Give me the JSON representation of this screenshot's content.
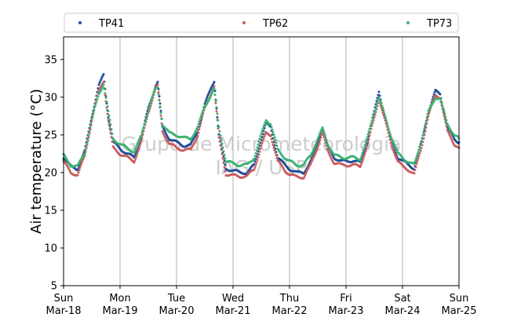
{
  "chart_data": {
    "type": "scatter",
    "title": "",
    "xlabel": "",
    "ylabel": "Air temperature (°C)",
    "ylim": [
      5,
      38
    ],
    "yticks": [
      5,
      10,
      15,
      20,
      25,
      30,
      35
    ],
    "xlim": [
      "2018-03-18 00:00",
      "2018-03-25 00:00"
    ],
    "xticks": [
      {
        "date": "2018-03-18",
        "day": "Sun",
        "label": "Mar-18"
      },
      {
        "date": "2018-03-19",
        "day": "Mon",
        "label": "Mar-19"
      },
      {
        "date": "2018-03-20",
        "day": "Tue",
        "label": "Mar-20"
      },
      {
        "date": "2018-03-21",
        "day": "Wed",
        "label": "Mar-21"
      },
      {
        "date": "2018-03-22",
        "day": "Thu",
        "label": "Mar-22"
      },
      {
        "date": "2018-03-23",
        "day": "Fri",
        "label": "Mar-23"
      },
      {
        "date": "2018-03-24",
        "day": "Sat",
        "label": "Mar-24"
      },
      {
        "date": "2018-03-25",
        "day": "Sun",
        "label": "Mar-25"
      }
    ],
    "grid": "vertical",
    "legend_position": "top",
    "watermark": [
      "Grupo de Micrometeorologia",
      "IAG / USP"
    ],
    "series": [
      {
        "name": "TP41",
        "color": "#1f4e9a",
        "points": [
          [
            "2018-03-18 00:00",
            22.0
          ],
          [
            "2018-03-18 03:00",
            20.8
          ],
          [
            "2018-03-18 06:00",
            20.5
          ],
          [
            "2018-03-18 09:00",
            22.8
          ],
          [
            "2018-03-18 12:00",
            27.5
          ],
          [
            "2018-03-18 15:00",
            31.5
          ],
          [
            "2018-03-18 17:00",
            33.0
          ],
          [
            "2018-03-18 19:00",
            27.5
          ],
          [
            "2018-03-18 21:00",
            24.0
          ],
          [
            "2018-03-19 00:00",
            23.2
          ],
          [
            "2018-03-19 03:00",
            22.5
          ],
          [
            "2018-03-19 06:00",
            22.0
          ],
          [
            "2018-03-19 09:00",
            24.5
          ],
          [
            "2018-03-19 12:00",
            28.5
          ],
          [
            "2018-03-19 15:00",
            31.5
          ],
          [
            "2018-03-19 16:00",
            32.0
          ],
          [
            "2018-03-19 18:00",
            26.0
          ],
          [
            "2018-03-19 21:00",
            24.5
          ],
          [
            "2018-03-20 00:00",
            24.0
          ],
          [
            "2018-03-20 03:00",
            23.6
          ],
          [
            "2018-03-20 06:00",
            23.6
          ],
          [
            "2018-03-20 09:00",
            25.5
          ],
          [
            "2018-03-20 12:00",
            29.0
          ],
          [
            "2018-03-20 15:00",
            31.5
          ],
          [
            "2018-03-20 16:00",
            32.2
          ],
          [
            "2018-03-20 18:00",
            25.0
          ],
          [
            "2018-03-20 21:00",
            20.5
          ],
          [
            "2018-03-21 00:00",
            20.3
          ],
          [
            "2018-03-21 03:00",
            20.0
          ],
          [
            "2018-03-21 06:00",
            20.0
          ],
          [
            "2018-03-21 09:00",
            21.0
          ],
          [
            "2018-03-21 12:00",
            24.5
          ],
          [
            "2018-03-21 14:00",
            26.5
          ],
          [
            "2018-03-21 16:00",
            26.0
          ],
          [
            "2018-03-21 19:00",
            22.0
          ],
          [
            "2018-03-21 22:00",
            21.0
          ],
          [
            "2018-03-22 00:00",
            20.5
          ],
          [
            "2018-03-22 03:00",
            20.0
          ],
          [
            "2018-03-22 06:00",
            20.0
          ],
          [
            "2018-03-22 09:00",
            21.5
          ],
          [
            "2018-03-22 12:00",
            24.0
          ],
          [
            "2018-03-22 14:00",
            26.0
          ],
          [
            "2018-03-22 16:00",
            23.5
          ],
          [
            "2018-03-22 19:00",
            22.0
          ],
          [
            "2018-03-22 22:00",
            21.5
          ],
          [
            "2018-03-23 00:00",
            21.5
          ],
          [
            "2018-03-23 03:00",
            21.6
          ],
          [
            "2018-03-23 06:00",
            21.3
          ],
          [
            "2018-03-23 09:00",
            24.0
          ],
          [
            "2018-03-23 12:00",
            28.0
          ],
          [
            "2018-03-23 14:00",
            30.8
          ],
          [
            "2018-03-23 16:00",
            28.0
          ],
          [
            "2018-03-23 19:00",
            24.5
          ],
          [
            "2018-03-23 22:00",
            22.0
          ],
          [
            "2018-03-24 00:00",
            21.5
          ],
          [
            "2018-03-24 03:00",
            21.0
          ],
          [
            "2018-03-24 05:00",
            20.5
          ],
          [
            "2018-03-24 08:00",
            24.0
          ],
          [
            "2018-03-24 11:00",
            28.0
          ],
          [
            "2018-03-24 14:00",
            30.8
          ],
          [
            "2018-03-24 16:00",
            30.5
          ],
          [
            "2018-03-24 19:00",
            26.0
          ],
          [
            "2018-03-24 22:00",
            24.5
          ],
          [
            "2018-03-25 00:00",
            24.0
          ]
        ]
      },
      {
        "name": "TP62",
        "color": "#cd5c5c",
        "points": [
          [
            "2018-03-18 00:00",
            21.5
          ],
          [
            "2018-03-18 03:00",
            20.0
          ],
          [
            "2018-03-18 06:00",
            19.7
          ],
          [
            "2018-03-18 09:00",
            22.2
          ],
          [
            "2018-03-18 12:00",
            27.0
          ],
          [
            "2018-03-18 15:00",
            30.8
          ],
          [
            "2018-03-18 17:00",
            32.2
          ],
          [
            "2018-03-18 19:00",
            27.0
          ],
          [
            "2018-03-18 21:00",
            23.3
          ],
          [
            "2018-03-19 00:00",
            22.5
          ],
          [
            "2018-03-19 03:00",
            22.0
          ],
          [
            "2018-03-19 06:00",
            21.5
          ],
          [
            "2018-03-19 09:00",
            24.0
          ],
          [
            "2018-03-19 12:00",
            28.0
          ],
          [
            "2018-03-19 15:00",
            31.0
          ],
          [
            "2018-03-19 16:00",
            31.5
          ],
          [
            "2018-03-19 18:00",
            25.5
          ],
          [
            "2018-03-19 21:00",
            23.8
          ],
          [
            "2018-03-20 00:00",
            23.3
          ],
          [
            "2018-03-20 03:00",
            23.0
          ],
          [
            "2018-03-20 06:00",
            23.0
          ],
          [
            "2018-03-20 09:00",
            25.0
          ],
          [
            "2018-03-20 12:00",
            28.5
          ],
          [
            "2018-03-20 15:00",
            30.8
          ],
          [
            "2018-03-20 16:00",
            31.5
          ],
          [
            "2018-03-20 18:00",
            24.5
          ],
          [
            "2018-03-20 21:00",
            19.8
          ],
          [
            "2018-03-21 00:00",
            19.6
          ],
          [
            "2018-03-21 03:00",
            19.5
          ],
          [
            "2018-03-21 06:00",
            19.5
          ],
          [
            "2018-03-21 09:00",
            20.5
          ],
          [
            "2018-03-21 12:00",
            23.5
          ],
          [
            "2018-03-21 14:00",
            25.2
          ],
          [
            "2018-03-21 16:00",
            25.0
          ],
          [
            "2018-03-21 19:00",
            21.5
          ],
          [
            "2018-03-21 22:00",
            20.3
          ],
          [
            "2018-03-22 00:00",
            19.8
          ],
          [
            "2018-03-22 03:00",
            19.4
          ],
          [
            "2018-03-22 06:00",
            19.4
          ],
          [
            "2018-03-22 09:00",
            21.0
          ],
          [
            "2018-03-22 12:00",
            23.5
          ],
          [
            "2018-03-22 14:00",
            25.3
          ],
          [
            "2018-03-22 16:00",
            23.0
          ],
          [
            "2018-03-22 19:00",
            21.3
          ],
          [
            "2018-03-22 22:00",
            21.0
          ],
          [
            "2018-03-23 00:00",
            21.0
          ],
          [
            "2018-03-23 03:00",
            21.0
          ],
          [
            "2018-03-23 06:00",
            20.8
          ],
          [
            "2018-03-23 09:00",
            23.5
          ],
          [
            "2018-03-23 12:00",
            27.3
          ],
          [
            "2018-03-23 14:00",
            29.8
          ],
          [
            "2018-03-23 16:00",
            27.5
          ],
          [
            "2018-03-23 19:00",
            24.0
          ],
          [
            "2018-03-23 22:00",
            21.5
          ],
          [
            "2018-03-24 00:00",
            20.8
          ],
          [
            "2018-03-24 03:00",
            20.3
          ],
          [
            "2018-03-24 05:00",
            19.8
          ],
          [
            "2018-03-24 08:00",
            23.3
          ],
          [
            "2018-03-24 11:00",
            27.5
          ],
          [
            "2018-03-24 14:00",
            30.3
          ],
          [
            "2018-03-24 16:00",
            30.0
          ],
          [
            "2018-03-24 19:00",
            25.5
          ],
          [
            "2018-03-24 22:00",
            23.8
          ],
          [
            "2018-03-25 00:00",
            23.3
          ]
        ]
      },
      {
        "name": "TP73",
        "color": "#3cb371",
        "points": [
          [
            "2018-03-18 00:00",
            22.3
          ],
          [
            "2018-03-18 03:00",
            21.0
          ],
          [
            "2018-03-18 06:00",
            20.8
          ],
          [
            "2018-03-18 09:00",
            22.6
          ],
          [
            "2018-03-18 12:00",
            27.0
          ],
          [
            "2018-03-18 15:00",
            30.5
          ],
          [
            "2018-03-18 17:00",
            31.8
          ],
          [
            "2018-03-18 19:00",
            28.0
          ],
          [
            "2018-03-18 21:00",
            24.5
          ],
          [
            "2018-03-19 00:00",
            23.8
          ],
          [
            "2018-03-19 03:00",
            23.2
          ],
          [
            "2018-03-19 06:00",
            22.8
          ],
          [
            "2018-03-19 09:00",
            24.8
          ],
          [
            "2018-03-19 12:00",
            28.5
          ],
          [
            "2018-03-19 15:00",
            31.0
          ],
          [
            "2018-03-19 16:00",
            31.2
          ],
          [
            "2018-03-19 18:00",
            26.5
          ],
          [
            "2018-03-19 21:00",
            25.2
          ],
          [
            "2018-03-20 00:00",
            25.0
          ],
          [
            "2018-03-20 03:00",
            24.6
          ],
          [
            "2018-03-20 06:00",
            24.5
          ],
          [
            "2018-03-20 09:00",
            26.0
          ],
          [
            "2018-03-20 12:00",
            28.8
          ],
          [
            "2018-03-20 15:00",
            30.5
          ],
          [
            "2018-03-20 16:00",
            31.0
          ],
          [
            "2018-03-20 18:00",
            26.0
          ],
          [
            "2018-03-20 21:00",
            21.5
          ],
          [
            "2018-03-21 00:00",
            21.2
          ],
          [
            "2018-03-21 03:00",
            21.0
          ],
          [
            "2018-03-21 06:00",
            21.0
          ],
          [
            "2018-03-21 09:00",
            22.0
          ],
          [
            "2018-03-21 12:00",
            25.0
          ],
          [
            "2018-03-21 14:00",
            27.0
          ],
          [
            "2018-03-21 16:00",
            26.5
          ],
          [
            "2018-03-21 19:00",
            23.0
          ],
          [
            "2018-03-21 22:00",
            22.0
          ],
          [
            "2018-03-22 00:00",
            21.5
          ],
          [
            "2018-03-22 03:00",
            21.0
          ],
          [
            "2018-03-22 06:00",
            21.0
          ],
          [
            "2018-03-22 09:00",
            22.3
          ],
          [
            "2018-03-22 12:00",
            24.5
          ],
          [
            "2018-03-22 14:00",
            25.8
          ],
          [
            "2018-03-22 16:00",
            24.0
          ],
          [
            "2018-03-22 19:00",
            22.3
          ],
          [
            "2018-03-22 22:00",
            22.0
          ],
          [
            "2018-03-23 00:00",
            22.0
          ],
          [
            "2018-03-23 03:00",
            22.0
          ],
          [
            "2018-03-23 06:00",
            21.8
          ],
          [
            "2018-03-23 09:00",
            24.5
          ],
          [
            "2018-03-23 12:00",
            28.0
          ],
          [
            "2018-03-23 14:00",
            30.0
          ],
          [
            "2018-03-23 16:00",
            28.0
          ],
          [
            "2018-03-23 19:00",
            25.0
          ],
          [
            "2018-03-23 22:00",
            22.5
          ],
          [
            "2018-03-24 00:00",
            22.0
          ],
          [
            "2018-03-24 03:00",
            21.3
          ],
          [
            "2018-03-24 05:00",
            21.0
          ],
          [
            "2018-03-24 08:00",
            24.2
          ],
          [
            "2018-03-24 11:00",
            28.0
          ],
          [
            "2018-03-24 14:00",
            30.0
          ],
          [
            "2018-03-24 16:00",
            29.8
          ],
          [
            "2018-03-24 19:00",
            26.5
          ],
          [
            "2018-03-24 22:00",
            25.0
          ],
          [
            "2018-03-25 00:00",
            24.5
          ]
        ]
      }
    ]
  }
}
